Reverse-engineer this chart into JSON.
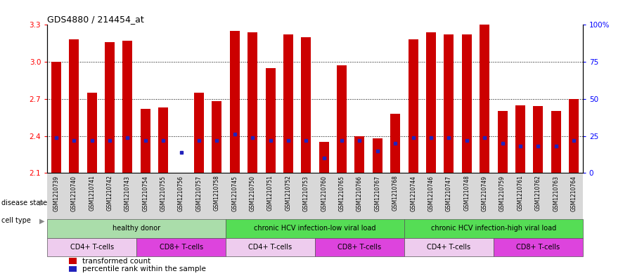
{
  "title": "GDS4880 / 214454_at",
  "samples": [
    "GSM1210739",
    "GSM1210740",
    "GSM1210741",
    "GSM1210742",
    "GSM1210743",
    "GSM1210754",
    "GSM1210755",
    "GSM1210756",
    "GSM1210757",
    "GSM1210758",
    "GSM1210745",
    "GSM1210750",
    "GSM1210751",
    "GSM1210752",
    "GSM1210753",
    "GSM1210760",
    "GSM1210765",
    "GSM1210766",
    "GSM1210767",
    "GSM1210768",
    "GSM1210744",
    "GSM1210746",
    "GSM1210747",
    "GSM1210748",
    "GSM1210749",
    "GSM1210759",
    "GSM1210761",
    "GSM1210762",
    "GSM1210763",
    "GSM1210764"
  ],
  "bar_values": [
    3.0,
    3.18,
    2.75,
    3.16,
    3.17,
    2.62,
    2.63,
    2.1,
    2.75,
    2.68,
    3.25,
    3.24,
    2.95,
    3.22,
    3.2,
    2.35,
    2.97,
    2.4,
    2.38,
    2.58,
    3.18,
    3.24,
    3.22,
    3.22,
    3.3,
    2.6,
    2.65,
    2.64,
    2.6,
    2.7
  ],
  "percentile_values": [
    24,
    22,
    22,
    22,
    24,
    22,
    22,
    14,
    22,
    22,
    26,
    24,
    22,
    22,
    22,
    10,
    22,
    22,
    15,
    20,
    24,
    24,
    24,
    22,
    24,
    20,
    18,
    18,
    18,
    22
  ],
  "bar_color": "#cc0000",
  "percentile_color": "#2222bb",
  "ylim_left": [
    2.1,
    3.3
  ],
  "ylim_right": [
    0,
    100
  ],
  "yticks_left": [
    2.1,
    2.4,
    2.7,
    3.0,
    3.3
  ],
  "ytick_labels_left": [
    "2.1",
    "2.4",
    "2.7",
    "3.0",
    "3.3"
  ],
  "yticks_right": [
    0,
    25,
    50,
    75,
    100
  ],
  "ytick_labels_right": [
    "0",
    "25",
    "50",
    "75",
    "100%"
  ],
  "grid_lines": [
    2.4,
    2.7,
    3.0
  ],
  "disease_groups": [
    {
      "label": "healthy donor",
      "start": 0,
      "end": 10,
      "color": "#aaddaa"
    },
    {
      "label": "chronic HCV infection-low viral load",
      "start": 10,
      "end": 20,
      "color": "#55dd55"
    },
    {
      "label": "chronic HCV infection-high viral load",
      "start": 20,
      "end": 30,
      "color": "#55dd55"
    }
  ],
  "cell_groups": [
    {
      "label": "CD4+ T-cells",
      "start": 0,
      "end": 5,
      "color": "#eeccee"
    },
    {
      "label": "CD8+ T-cells",
      "start": 5,
      "end": 10,
      "color": "#dd44dd"
    },
    {
      "label": "CD4+ T-cells",
      "start": 10,
      "end": 15,
      "color": "#eeccee"
    },
    {
      "label": "CD8+ T-cells",
      "start": 15,
      "end": 20,
      "color": "#dd44dd"
    },
    {
      "label": "CD4+ T-cells",
      "start": 20,
      "end": 25,
      "color": "#eeccee"
    },
    {
      "label": "CD8+ T-cells",
      "start": 25,
      "end": 30,
      "color": "#dd44dd"
    }
  ],
  "legend_bar_label": "transformed count",
  "legend_percentile_label": "percentile rank within the sample",
  "disease_state_label": "disease state",
  "cell_type_label": "cell type",
  "xtick_bg": "#d8d8d8"
}
